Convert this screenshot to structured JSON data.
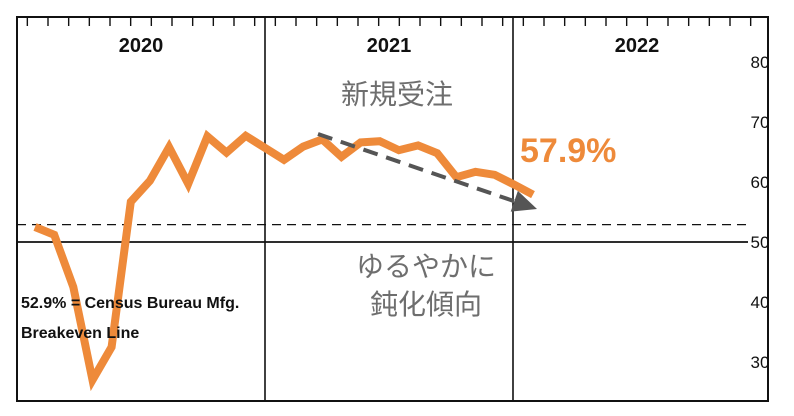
{
  "chart_data": {
    "type": "line",
    "years": [
      "2020",
      "2021",
      "2022"
    ],
    "ylim": [
      25,
      85
    ],
    "yticks": [
      30,
      40,
      50,
      60,
      70,
      80
    ],
    "reference_lines": [
      {
        "value": 50,
        "style": "solid"
      },
      {
        "value": 52.9,
        "style": "dashed"
      }
    ],
    "series": [
      {
        "color": "#ee8a3a",
        "values": [
          52.5,
          51.2,
          42.5,
          27.0,
          32.5,
          56.7,
          60.2,
          65.8,
          59.7,
          67.6,
          64.9,
          67.7,
          65.7,
          63.7,
          65.9,
          67.1,
          64.2,
          66.6,
          66.8,
          65.3,
          66.1,
          64.8,
          60.8,
          61.7,
          61.2,
          59.6,
          57.9
        ]
      }
    ],
    "trend_arrow": {
      "from": 68.0,
      "to": 55.5,
      "color": "#555555"
    },
    "annotations": {
      "title_jp": "新規受注",
      "latest_value": "57.9%",
      "trend_line1": "ゆるやかに",
      "trend_line2": "鈍化傾向",
      "breakeven_line1": "52.9% = Census Bureau Mfg.",
      "breakeven_line2": "Breakeven Line"
    },
    "accent_color": "#ee8a3a"
  }
}
